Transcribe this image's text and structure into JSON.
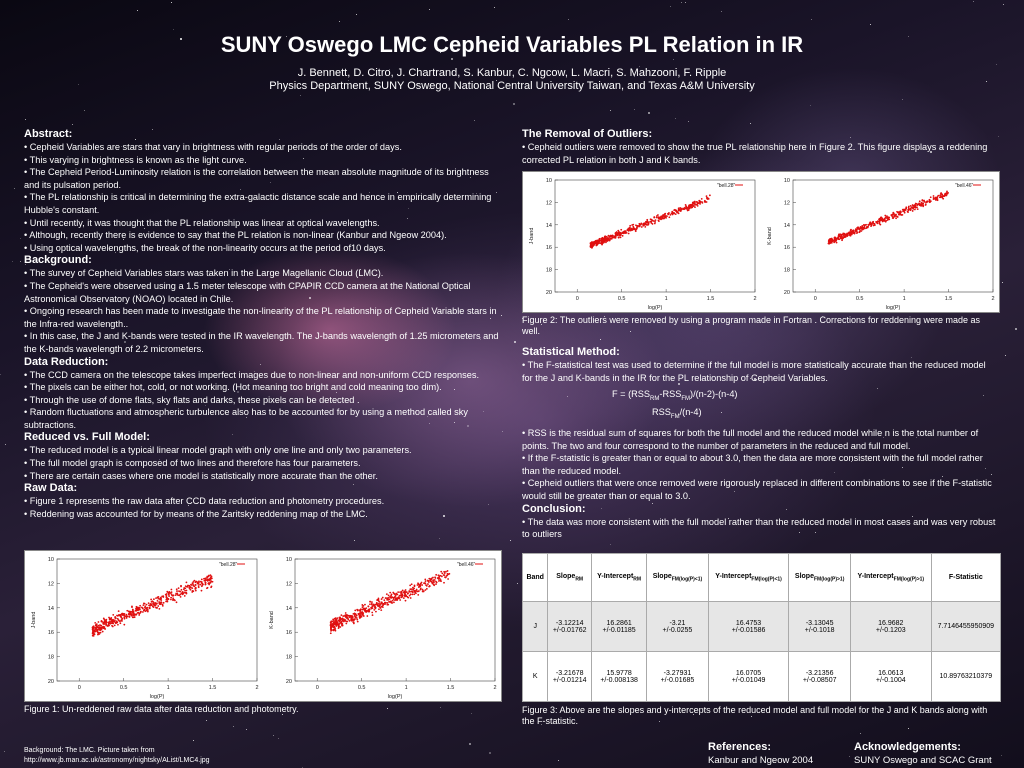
{
  "title": "SUNY Oswego LMC Cepheid Variables PL Relation in IR",
  "authors": "J. Bennett, D. Citro, J. Chartrand, S. Kanbur, C. Ngcow, L. Macri, S. Mahzooni, F. Ripple",
  "affiliation": "Physics Department, SUNY Oswego, National Central University Taiwan, and Texas A&M University",
  "abstract": {
    "heading": "Abstract:",
    "bullets": [
      "• Cepheid Variables are stars that vary in brightness with regular periods of the order of days.",
      "• This varying in brightness is known as the light curve.",
      "• The Cepheid Period-Luminosity relation is the correlation between the mean absolute magnitude of its brightness and its pulsation period.",
      "• The PL relationship is critical in determining the extra-galactic distance scale and hence in empirically determining Hubble's constant.",
      "• Until recently, it was thought that the PL relationship was linear at optical wavelengths.",
      "• Although, recently there is evidence to say that the PL relation  is non-linear (Kanbur and Ngeow 2004).",
      "• Using optical wavelengths, the break of the non-linearity occurs at the period of10 days."
    ]
  },
  "background": {
    "heading": "Background:",
    "bullets": [
      "• The survey of Cepheid Variables stars was taken in the Large Magellanic Cloud (LMC).",
      "• The Cepheid's were observed using a 1.5 meter telescope with CPAPIR CCD camera at the National Optical Astronomical Observatory (NOAO) located in Chile.",
      "• Ongoing research has been made to investigate the non-linearity of the PL relationship of Cepheid Variable stars in the Infra-red wavelength..",
      "• In this case, the J and K-bands were tested in the IR wavelength. The J-bands wavelength of 1.25 micrometers and the K-bands wavelength of  2.2 micrometers."
    ]
  },
  "reduction": {
    "heading": "Data Reduction:",
    "bullets": [
      "• The CCD camera on the telescope takes imperfect images due to non-linear and  non-uniform CCD responses.",
      "• The pixels  can be  either hot, cold, or not working.  (Hot meaning too bright and cold meaning too dim).",
      "• Through the use of dome flats, sky flats and darks,  these pixels can be detected .",
      "• Random fluctuations and atmospheric turbulence also has to be accounted for by using a method called sky subtractions."
    ]
  },
  "reduced_full": {
    "heading": "Reduced vs. Full Model:",
    "bullets": [
      "• The reduced model is a typical linear model graph with only one line and only two parameters.",
      "• The full model graph is composed of two lines and therefore has four parameters.",
      "• There are certain cases where one model is statistically more accurate than the other."
    ]
  },
  "raw": {
    "heading": "Raw Data:",
    "bullets": [
      "• Figure 1 represents the raw data after CCD data reduction and photometry procedures.",
      "• Reddening was accounted for by means of the Zaritsky reddening map of the LMC."
    ]
  },
  "figure1_caption": "Figure 1: Un-reddened raw data after data reduction and photometry.",
  "outliers": {
    "heading": "The Removal of Outliers:",
    "text": "• Cepheid outliers were removed to  show the true PL relationship here in Figure 2. This figure displays a reddening corrected PL relation in both J and K bands."
  },
  "figure2_caption": "Figure 2: The outliers were removed by using a program made in Fortran . Corrections for reddening were made as well.",
  "stat": {
    "heading": "Statistical Method:",
    "intro": "• The F-statistical test was used to determine if the full model is more statistically accurate than the reduced model for the J and K-bands in the IR for the PL relationship of Cepheid Variables.",
    "formula1": "F = (RSS_RM-RSS_FM)/(n-2)-(n-4)",
    "formula2": "RSS_FM/(n-4)",
    "bullets": [
      "• RSS is the residual sum of squares for both the full model and the reduced model while n is the total number of points. The two and four correspond to the number of parameters in the reduced and full model.",
      "• If the F-statistic is greater than or equal to about 3.0, then the data are more consistent with the full model rather than the reduced model.",
      "• Cepheid outliers that were once removed were rigorously replaced in different combinations to see if the F-statistic would still be greater than  or equal to 3.0."
    ]
  },
  "conclusion": {
    "heading": "Conclusion:",
    "text": "• The data was more consistent with the full model rather than the reduced model in most cases and was very robust to outliers"
  },
  "table": {
    "headers": [
      "Band",
      "Slope_RM",
      "Y-Intercept_RM",
      "Slope_FM(log(P)<1)",
      "Y-Intercept_FM(log(P)<1)",
      "Slope_FM(log(P)>1)",
      "Y-Intercept_FM(log(P)>1)",
      "F-Statistic"
    ],
    "rows": [
      [
        "J",
        "-3.12214\n+/-0.01762",
        "16.2861\n+/-0.01185",
        "-3.21\n+/-0.0255",
        "16.4753\n+/-0.01586",
        "-3.13045\n+/-0.1018",
        "16.9682\n+/-0.1203",
        "7.7146455950909"
      ],
      [
        "K",
        "-3.21678\n+/-0.01214",
        "15.9778\n+/-0.008138",
        "-3.27931\n+/-0.01685",
        "16.0705\n+/-0.01049",
        "-3.21356\n+/-0.08507",
        "16.0613\n+/-0.1004",
        "10.89763210379"
      ]
    ]
  },
  "figure3_caption": "Figure 3: Above are the slopes and y-intercepts of the reduced model and full model for the J and K bands along with the F-statistic.",
  "bottom_small": "Background:  The LMC. Picture taken from\nhttp://www.jb.man.ac.uk/astronomy/nightsky/AList/LMC4.jpg",
  "references": {
    "heading": "References:",
    "text": "Kanbur and Ngeow 2004"
  },
  "acknowledgements": {
    "heading": "Acknowledgements:",
    "text": "SUNY Oswego and SCAC Grant"
  },
  "plots": {
    "fig1_left": {
      "ylabel": "J-band",
      "tag": "\"bell.28\"",
      "xlabel": "log(P)",
      "xticks": [
        "0",
        "0.5",
        "1",
        "1.5",
        "2"
      ],
      "yticks": [
        "10",
        "12",
        "14",
        "16",
        "18",
        "20"
      ]
    },
    "fig1_right": {
      "ylabel": "K-band",
      "tag": "\"bell.46\"",
      "xlabel": "log(P)",
      "xticks": [
        "0",
        "0.5",
        "1",
        "1.5",
        "2"
      ],
      "yticks": [
        "10",
        "12",
        "14",
        "16",
        "18",
        "20"
      ]
    },
    "fig2_left": {
      "ylabel": "J-band",
      "tag": "\"bell.28\"",
      "xlabel": "log(P)",
      "xticks": [
        "0",
        "0.5",
        "1",
        "1.5",
        "2"
      ],
      "yticks": [
        "10",
        "12",
        "14",
        "16",
        "18",
        "20"
      ]
    },
    "fig2_right": {
      "ylabel": "K-band",
      "tag": "\"bell.46\"",
      "xlabel": "log(P)",
      "xticks": [
        "0",
        "0.5",
        "1",
        "1.5",
        "2"
      ],
      "yticks": [
        "10",
        "12",
        "14",
        "16",
        "18",
        "20"
      ]
    }
  },
  "colors": {
    "points": "#e01010",
    "text": "#ffffff"
  }
}
